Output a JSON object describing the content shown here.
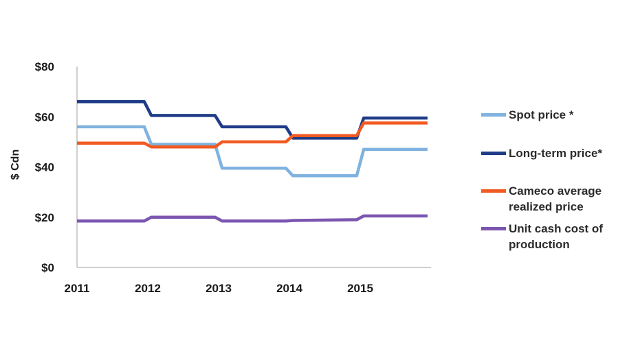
{
  "chart_data": {
    "type": "line",
    "ylabel": "$ Cdn",
    "xlabel": "",
    "x_ticks": [
      "2011",
      "2012",
      "2013",
      "2014",
      "2015"
    ],
    "y_ticks": [
      "$0",
      "$20",
      "$40",
      "$60",
      "$80"
    ],
    "ylim": [
      0,
      80
    ],
    "xlim": [
      2011,
      2016
    ],
    "grid": false,
    "legend_position": "right",
    "series": [
      {
        "name": "Spot price *",
        "color": "#7fb2df",
        "points": [
          [
            2011,
            56
          ],
          [
            2011.95,
            56
          ],
          [
            2012.05,
            49
          ],
          [
            2012.95,
            49
          ],
          [
            2013.05,
            39.5
          ],
          [
            2013.95,
            39.5
          ],
          [
            2014.05,
            36.5
          ],
          [
            2014.95,
            36.5
          ],
          [
            2015.05,
            47
          ],
          [
            2015.95,
            47
          ]
        ]
      },
      {
        "name": "Long-term price*",
        "color": "#1f3c88",
        "points": [
          [
            2011,
            66
          ],
          [
            2011.95,
            66
          ],
          [
            2012.05,
            60.5
          ],
          [
            2012.95,
            60.5
          ],
          [
            2013.05,
            56
          ],
          [
            2013.95,
            56
          ],
          [
            2014.05,
            51.5
          ],
          [
            2014.95,
            51.5
          ],
          [
            2015.05,
            59.5
          ],
          [
            2015.95,
            59.5
          ]
        ]
      },
      {
        "name": "Cameco average realized price",
        "color": "#f15a22",
        "points": [
          [
            2011,
            49.5
          ],
          [
            2011.95,
            49.5
          ],
          [
            2012.05,
            48
          ],
          [
            2012.95,
            48
          ],
          [
            2013.05,
            50
          ],
          [
            2013.95,
            50
          ],
          [
            2014.05,
            52.5
          ],
          [
            2014.95,
            52.5
          ],
          [
            2015.05,
            57.5
          ],
          [
            2015.95,
            57.5
          ]
        ]
      },
      {
        "name": "Unit cash cost of production",
        "color": "#7b56b0",
        "points": [
          [
            2011,
            18.5
          ],
          [
            2011.95,
            18.5
          ],
          [
            2012.05,
            20
          ],
          [
            2012.95,
            20
          ],
          [
            2013.05,
            18.5
          ],
          [
            2013.95,
            18.5
          ],
          [
            2014.05,
            18.7
          ],
          [
            2014.95,
            19
          ],
          [
            2015.05,
            20.5
          ],
          [
            2015.95,
            20.5
          ]
        ]
      }
    ]
  },
  "legend": [
    {
      "label": "Spot price *",
      "color": "#7fb2df"
    },
    {
      "label": "Long-term price*",
      "color": "#1f3c88"
    },
    {
      "label": "Cameco average realized price",
      "color": "#f15a22"
    },
    {
      "label": "Unit cash cost of production",
      "color": "#7b56b0"
    }
  ]
}
